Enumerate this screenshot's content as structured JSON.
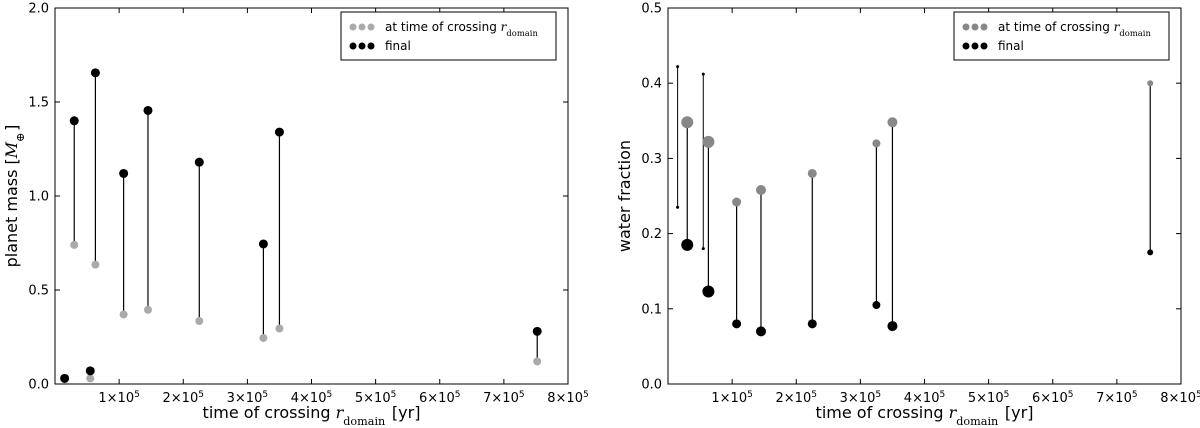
{
  "chart_data": [
    {
      "type": "scatter",
      "xlabel": "time of crossing r_domain [yr]",
      "ylabel": "planet mass [M_⊕]",
      "xlim": [
        0,
        800000
      ],
      "ylim": [
        0,
        2.0
      ],
      "xticks": [
        {
          "value": 100000,
          "mant": "1",
          "exp": "5"
        },
        {
          "value": 200000,
          "mant": "2",
          "exp": "5"
        },
        {
          "value": 300000,
          "mant": "3",
          "exp": "5"
        },
        {
          "value": 400000,
          "mant": "4",
          "exp": "5"
        },
        {
          "value": 500000,
          "mant": "5",
          "exp": "5"
        },
        {
          "value": 600000,
          "mant": "6",
          "exp": "5"
        },
        {
          "value": 700000,
          "mant": "7",
          "exp": "5"
        },
        {
          "value": 800000,
          "mant": "8",
          "exp": "5"
        }
      ],
      "yticks": [
        {
          "value": 0.0,
          "label": "0.0"
        },
        {
          "value": 0.5,
          "label": "0.5"
        },
        {
          "value": 1.0,
          "label": "1.0"
        },
        {
          "value": 1.5,
          "label": "1.5"
        },
        {
          "value": 2.0,
          "label": "2.0"
        }
      ],
      "legend": {
        "position": "top-right",
        "entries": [
          {
            "label": "at time of crossing r_domain",
            "color": "#aaaaaa"
          },
          {
            "label": "final",
            "color": "#000000"
          }
        ]
      },
      "series": [
        {
          "name": "at time of crossing r_domain",
          "color": "#aaaaaa",
          "x": [
            15000,
            30000,
            55000,
            63000,
            107000,
            145000,
            225000,
            325000,
            350000,
            752000
          ],
          "y": [
            0.025,
            0.74,
            0.03,
            0.635,
            0.37,
            0.395,
            0.335,
            0.245,
            0.295,
            0.12
          ]
        },
        {
          "name": "final",
          "color": "#000000",
          "x": [
            15000,
            30000,
            55000,
            63000,
            107000,
            145000,
            225000,
            325000,
            350000,
            752000
          ],
          "y": [
            0.03,
            1.4,
            0.07,
            1.655,
            1.12,
            1.455,
            1.18,
            0.745,
            1.34,
            0.28
          ]
        }
      ],
      "errorbars": []
    },
    {
      "type": "scatter",
      "xlabel": "time of crossing r_domain [yr]",
      "ylabel": "water fraction",
      "xlim": [
        0,
        800000
      ],
      "ylim": [
        0,
        0.5
      ],
      "xticks": [
        {
          "value": 100000,
          "mant": "1",
          "exp": "5"
        },
        {
          "value": 200000,
          "mant": "2",
          "exp": "5"
        },
        {
          "value": 300000,
          "mant": "3",
          "exp": "5"
        },
        {
          "value": 400000,
          "mant": "4",
          "exp": "5"
        },
        {
          "value": 500000,
          "mant": "5",
          "exp": "5"
        },
        {
          "value": 600000,
          "mant": "6",
          "exp": "5"
        },
        {
          "value": 700000,
          "mant": "7",
          "exp": "5"
        },
        {
          "value": 800000,
          "mant": "8",
          "exp": "5"
        }
      ],
      "yticks": [
        {
          "value": 0.0,
          "label": "0.0"
        },
        {
          "value": 0.1,
          "label": "0.1"
        },
        {
          "value": 0.2,
          "label": "0.2"
        },
        {
          "value": 0.3,
          "label": "0.3"
        },
        {
          "value": 0.4,
          "label": "0.4"
        },
        {
          "value": 0.5,
          "label": "0.5"
        }
      ],
      "legend": {
        "position": "top-right",
        "entries": [
          {
            "label": "at time of crossing r_domain",
            "color": "#888888"
          },
          {
            "label": "final",
            "color": "#000000"
          }
        ]
      },
      "series": [
        {
          "name": "at time of crossing r_domain",
          "color": "#888888",
          "x": [
            15000,
            30000,
            55000,
            63000,
            107000,
            145000,
            225000,
            325000,
            350000,
            752000
          ],
          "y": [
            0.235,
            0.348,
            0.18,
            0.322,
            0.242,
            0.258,
            0.28,
            0.32,
            0.348,
            0.4
          ],
          "sizes": [
            1.5,
            6,
            1.5,
            6,
            4.5,
            5,
            4.5,
            4,
            5,
            3
          ]
        },
        {
          "name": "final",
          "color": "#000000",
          "x": [
            15000,
            30000,
            55000,
            63000,
            107000,
            145000,
            225000,
            325000,
            350000,
            752000
          ],
          "y": [
            0.235,
            0.185,
            0.18,
            0.123,
            0.08,
            0.07,
            0.08,
            0.105,
            0.077,
            0.175
          ],
          "sizes": [
            1.5,
            6,
            1.5,
            6,
            4.5,
            5,
            4.5,
            4,
            5,
            3
          ]
        }
      ],
      "errorbars": [
        {
          "x": 15000,
          "low": 0.235,
          "high": 0.422
        },
        {
          "x": 55000,
          "low": 0.18,
          "high": 0.412
        }
      ]
    }
  ]
}
